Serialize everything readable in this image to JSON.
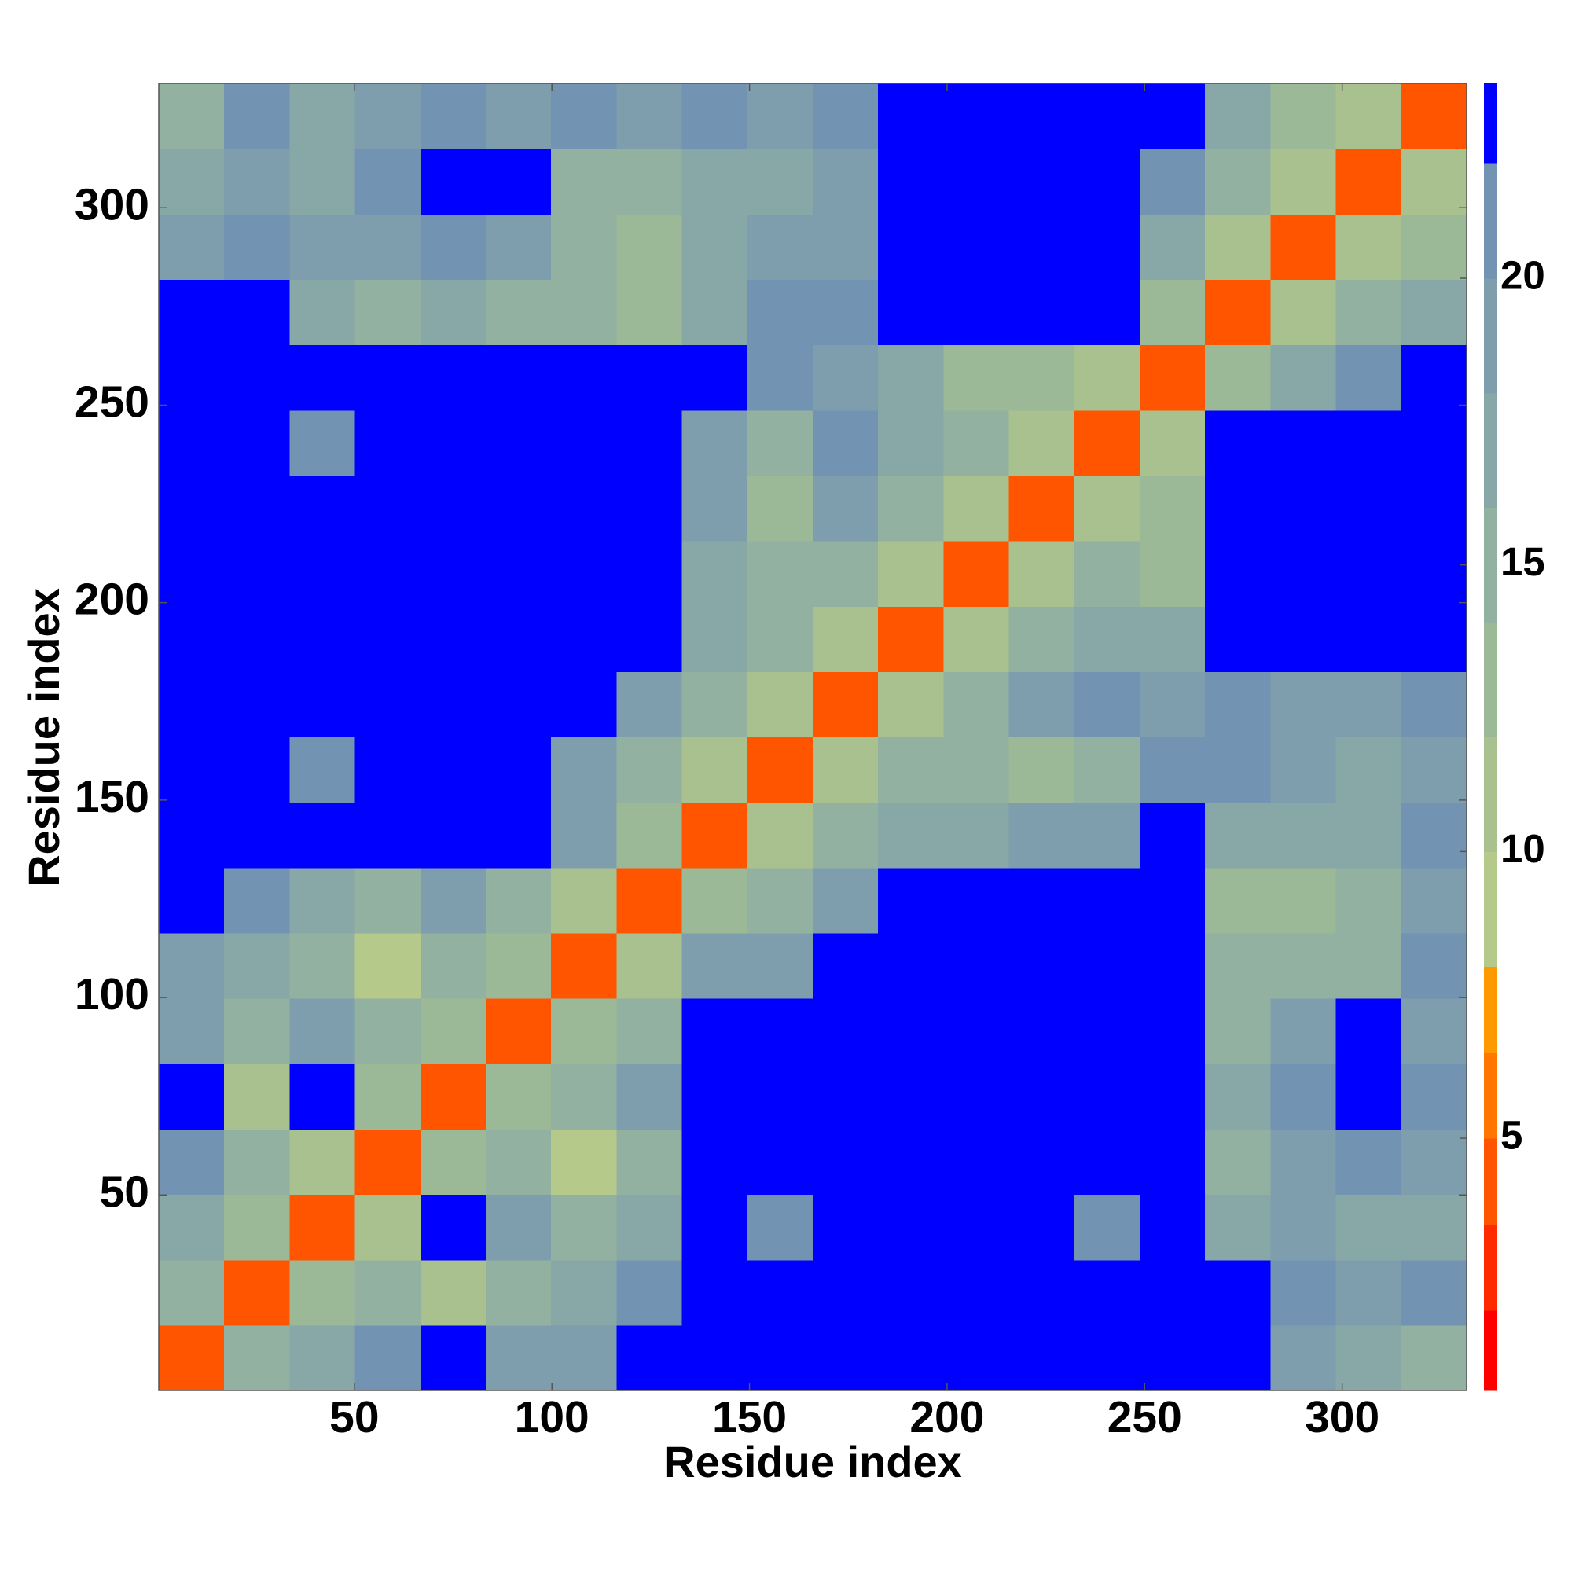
{
  "chart_data": {
    "type": "heatmap",
    "x_label": "Residue index",
    "y_label": "Residue index",
    "xlim": [
      0.5,
      331.5
    ],
    "ylim": [
      0.5,
      331.5
    ],
    "xticks": [
      50,
      100,
      150,
      200,
      250,
      300
    ],
    "yticks": [
      50,
      100,
      150,
      200,
      250,
      300
    ],
    "xbins": [
      0.5,
      17.05,
      33.6,
      50.15,
      66.7,
      83.25,
      99.8,
      116.35,
      132.9,
      149.45,
      166,
      182.55,
      199.1,
      215.65,
      232.2,
      248.75,
      265.3,
      281.85,
      298.4,
      314.95,
      331.5
    ],
    "ybins": [
      0.5,
      17.05,
      33.6,
      50.15,
      66.7,
      83.25,
      99.8,
      116.35,
      132.9,
      149.45,
      166,
      182.55,
      199.1,
      215.65,
      232.2,
      248.75,
      265.3,
      281.85,
      298.4,
      314.95,
      331.5
    ],
    "z": [
      [
        4,
        14,
        16,
        20,
        23,
        18,
        18,
        22,
        23,
        23,
        23,
        23,
        23,
        23,
        23,
        23,
        22,
        18,
        16,
        14
      ],
      [
        14,
        4,
        12,
        14,
        10,
        14,
        16,
        20,
        23,
        23,
        23,
        23,
        23,
        23,
        23,
        23,
        22,
        20,
        18,
        20
      ],
      [
        16,
        12,
        4,
        10,
        23,
        18,
        14,
        16,
        23,
        20,
        23,
        23,
        23,
        22,
        21,
        23,
        16,
        18,
        16,
        16
      ],
      [
        20,
        14,
        10,
        4,
        12,
        14,
        8,
        14,
        23,
        22,
        23,
        23,
        23,
        23,
        23,
        23,
        14,
        18,
        20,
        18
      ],
      [
        23,
        10,
        23,
        12,
        4,
        12,
        14,
        18,
        23,
        23,
        23,
        23,
        23,
        23,
        23,
        23,
        16,
        20,
        22,
        20
      ],
      [
        18,
        14,
        18,
        14,
        12,
        4,
        12,
        14,
        22,
        23,
        23,
        23,
        23,
        23,
        23,
        23,
        14,
        18,
        22,
        18
      ],
      [
        18,
        16,
        14,
        8,
        14,
        12,
        4,
        10,
        18,
        18,
        22,
        23,
        23,
        23,
        23,
        23,
        14,
        14,
        14,
        20
      ],
      [
        22,
        20,
        16,
        14,
        18,
        14,
        10,
        4,
        12,
        14,
        18,
        22,
        23,
        23,
        23,
        23,
        12,
        12,
        14,
        18
      ],
      [
        23,
        23,
        23,
        23,
        23,
        22,
        18,
        12,
        4,
        10,
        14,
        16,
        16,
        18,
        18,
        22,
        16,
        16,
        16,
        20
      ],
      [
        23,
        23,
        20,
        22,
        23,
        23,
        18,
        14,
        10,
        4,
        10,
        14,
        14,
        12,
        14,
        20,
        20,
        18,
        16,
        18
      ],
      [
        23,
        23,
        23,
        23,
        23,
        23,
        22,
        18,
        14,
        10,
        4,
        10,
        14,
        18,
        20,
        18,
        20,
        18,
        18,
        20
      ],
      [
        23,
        23,
        23,
        23,
        23,
        23,
        23,
        22,
        16,
        14,
        10,
        4,
        10,
        14,
        16,
        16,
        22,
        22,
        22,
        23
      ],
      [
        23,
        23,
        23,
        23,
        23,
        23,
        23,
        23,
        16,
        14,
        14,
        10,
        4,
        10,
        14,
        12,
        23,
        23,
        22,
        23
      ],
      [
        23,
        23,
        22,
        23,
        23,
        23,
        23,
        23,
        18,
        12,
        18,
        14,
        10,
        4,
        10,
        12,
        22,
        22,
        22,
        22
      ],
      [
        23,
        23,
        21,
        23,
        23,
        23,
        23,
        23,
        18,
        14,
        20,
        16,
        14,
        10,
        4,
        10,
        22,
        22,
        22,
        22
      ],
      [
        23,
        23,
        23,
        23,
        23,
        23,
        23,
        23,
        22,
        20,
        18,
        16,
        12,
        12,
        10,
        4,
        12,
        16,
        20,
        22
      ],
      [
        22,
        22,
        16,
        14,
        16,
        14,
        14,
        12,
        16,
        20,
        20,
        22,
        23,
        22,
        22,
        12,
        4,
        10,
        14,
        16
      ],
      [
        18,
        20,
        18,
        18,
        20,
        18,
        14,
        12,
        16,
        18,
        18,
        22,
        23,
        22,
        22,
        16,
        10,
        4,
        10,
        12
      ],
      [
        16,
        18,
        16,
        20,
        22,
        22,
        14,
        14,
        16,
        16,
        18,
        22,
        22,
        22,
        22,
        20,
        14,
        10,
        4,
        10
      ],
      [
        14,
        20,
        16,
        18,
        20,
        18,
        20,
        18,
        20,
        18,
        20,
        23,
        23,
        22,
        22,
        22,
        16,
        12,
        10,
        4
      ]
    ],
    "colorbar": {
      "lim": [
        0.6,
        23.4
      ],
      "ticks": [
        5,
        10,
        15,
        20
      ],
      "boundaries": [
        0.6,
        2,
        3.5,
        5,
        6.5,
        8,
        10,
        12,
        14,
        16,
        18,
        20,
        22,
        23.4
      ],
      "colors": [
        "#ff0000",
        "#ff2a00",
        "#ff5500",
        "#ff7700",
        "#ff9900",
        "#b5c98b",
        "#a8c18f",
        "#9cb997",
        "#93b1a0",
        "#88a8a8",
        "#7e9eae",
        "#7393b2",
        "#0000ff"
      ]
    }
  }
}
